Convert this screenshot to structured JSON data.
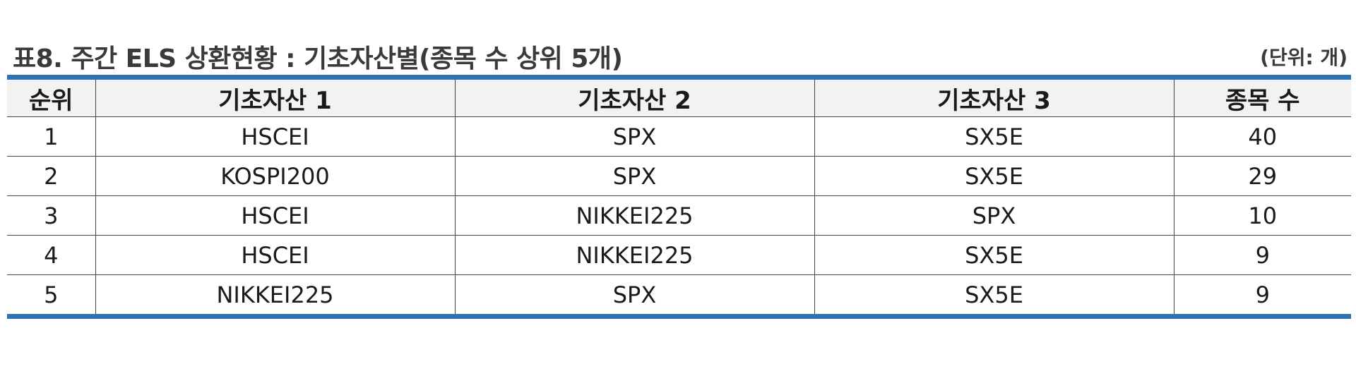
{
  "title": "표8. 주간 ELS 상환현황 : 기초자산별(종목 수 상위 5개)",
  "unit": "(단위: 개)",
  "table": {
    "headers": [
      "순위",
      "기초자산 1",
      "기초자산 2",
      "기초자산 3",
      "종목 수"
    ],
    "rows": [
      [
        "1",
        "HSCEI",
        "SPX",
        "SX5E",
        "40"
      ],
      [
        "2",
        "KOSPI200",
        "SPX",
        "SX5E",
        "29"
      ],
      [
        "3",
        "HSCEI",
        "NIKKEI225",
        "SPX",
        "10"
      ],
      [
        "4",
        "HSCEI",
        "NIKKEI225",
        "SX5E",
        "9"
      ],
      [
        "5",
        "NIKKEI225",
        "SPX",
        "SX5E",
        "9"
      ]
    ]
  },
  "colors": {
    "rule": "#2e74b5",
    "header_bg": "#f2f2f2"
  }
}
